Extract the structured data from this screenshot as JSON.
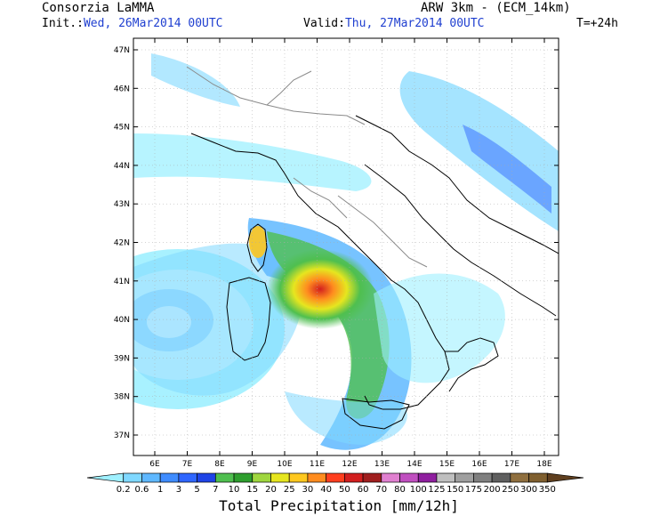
{
  "header": {
    "org": "Consorzia LaMMA",
    "model": "ARW 3km - (ECM_14km)",
    "init_label": "Init.:",
    "init_value": "Wed, 26Mar2014 00UTC",
    "valid_label": "Valid:",
    "valid_value": "Thu, 27Mar2014 00UTC",
    "lead": "T=+24h"
  },
  "map": {
    "lat_labels": [
      "47N",
      "46N",
      "45N",
      "44N",
      "43N",
      "42N",
      "41N",
      "40N",
      "39N",
      "38N",
      "37N"
    ],
    "lon_labels": [
      "6E",
      "7E",
      "8E",
      "9E",
      "10E",
      "11E",
      "12E",
      "13E",
      "14E",
      "15E",
      "16E",
      "17E",
      "18E"
    ]
  },
  "colorbar": {
    "title": "Total Precipitation [mm/12h]",
    "levels": [
      "0.2",
      "0.6",
      "1",
      "3",
      "5",
      "7",
      "10",
      "15",
      "20",
      "25",
      "30",
      "40",
      "50",
      "60",
      "70",
      "80",
      "100",
      "125",
      "150",
      "175",
      "200",
      "250",
      "300",
      "350"
    ],
    "colors": [
      "#9ff0ff",
      "#7fd8ff",
      "#5fb8ff",
      "#3f8cff",
      "#2f66ff",
      "#1f44e6",
      "#4fbf4f",
      "#2e9e2e",
      "#9fd63f",
      "#e6e61f",
      "#ffc81f",
      "#ff8c1f",
      "#ff3f1f",
      "#d21f1f",
      "#a01f1f",
      "#e080d0",
      "#c04fc0",
      "#8f1f9f",
      "#bfbfbf",
      "#9f9f9f",
      "#7f7f7f",
      "#5f5f5f",
      "#8f6f3f",
      "#7f5f2f",
      "#5f3f1f"
    ]
  }
}
